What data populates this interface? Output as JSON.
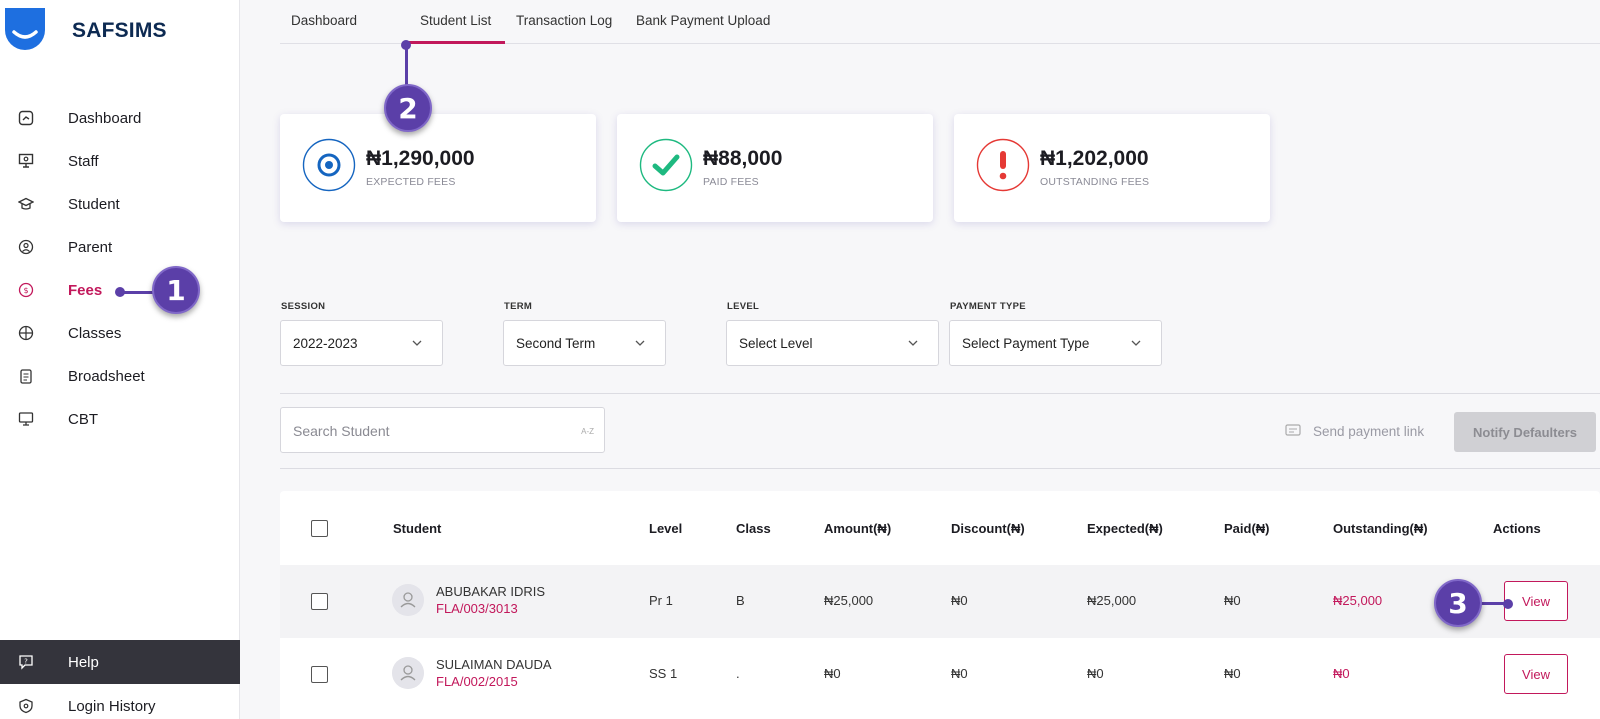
{
  "app": {
    "brand": "SAFSIMS"
  },
  "sidebar": {
    "items": [
      {
        "label": "Dashboard",
        "icon": "dashboard-icon"
      },
      {
        "label": "Staff",
        "icon": "staff-icon"
      },
      {
        "label": "Student",
        "icon": "student-icon"
      },
      {
        "label": "Parent",
        "icon": "parent-icon"
      },
      {
        "label": "Fees",
        "icon": "fees-icon",
        "active": true
      },
      {
        "label": "Classes",
        "icon": "classes-icon"
      },
      {
        "label": "Broadsheet",
        "icon": "broadsheet-icon"
      },
      {
        "label": "CBT",
        "icon": "cbt-icon"
      }
    ],
    "help_label": "Help",
    "login_history_label": "Login History"
  },
  "tabs": [
    {
      "label": "Dashboard"
    },
    {
      "label": "Student List",
      "active": true
    },
    {
      "label": "Transaction Log"
    },
    {
      "label": "Bank Payment Upload"
    }
  ],
  "stats": [
    {
      "amount": "₦1,290,000",
      "caption": "EXPECTED FEES",
      "color": "#1565c0"
    },
    {
      "amount": "₦88,000",
      "caption": "PAID FEES",
      "color": "#1eb980"
    },
    {
      "amount": "₦1,202,000",
      "caption": "OUTSTANDING FEES",
      "color": "#e53935"
    }
  ],
  "filters": {
    "session": {
      "label": "SESSION",
      "value": "2022-2023"
    },
    "term": {
      "label": "TERM",
      "value": "Second Term"
    },
    "level": {
      "label": "LEVEL",
      "value": "Select Level"
    },
    "payment_type": {
      "label": "PAYMENT TYPE",
      "value": "Select Payment Type"
    }
  },
  "search": {
    "placeholder": "Search Student",
    "sort_hint": "A-Z"
  },
  "actions": {
    "send_link": "Send payment link",
    "notify": "Notify Defaulters"
  },
  "table": {
    "headers": {
      "student": "Student",
      "level": "Level",
      "class": "Class",
      "amount": "Amount(₦)",
      "discount": "Discount(₦)",
      "expected": "Expected(₦)",
      "paid": "Paid(₦)",
      "outstanding": "Outstanding(₦)",
      "actions": "Actions"
    },
    "rows": [
      {
        "name": "ABUBAKAR IDRIS",
        "id": "FLA/003/3013",
        "level": "Pr 1",
        "class": "B",
        "amount": "₦25,000",
        "discount": "₦0",
        "expected": "₦25,000",
        "paid": "₦0",
        "outstanding": "₦25,000",
        "action": "View"
      },
      {
        "name": "SULAIMAN DAUDA",
        "id": "FLA/002/2015",
        "level": "SS 1",
        "class": ".",
        "amount": "₦0",
        "discount": "₦0",
        "expected": "₦0",
        "paid": "₦0",
        "outstanding": "₦0",
        "action": "View"
      }
    ]
  },
  "callouts": [
    "1",
    "2",
    "3"
  ],
  "colors": {
    "accent": "#c2185b",
    "callout": "#5b3fa8"
  }
}
